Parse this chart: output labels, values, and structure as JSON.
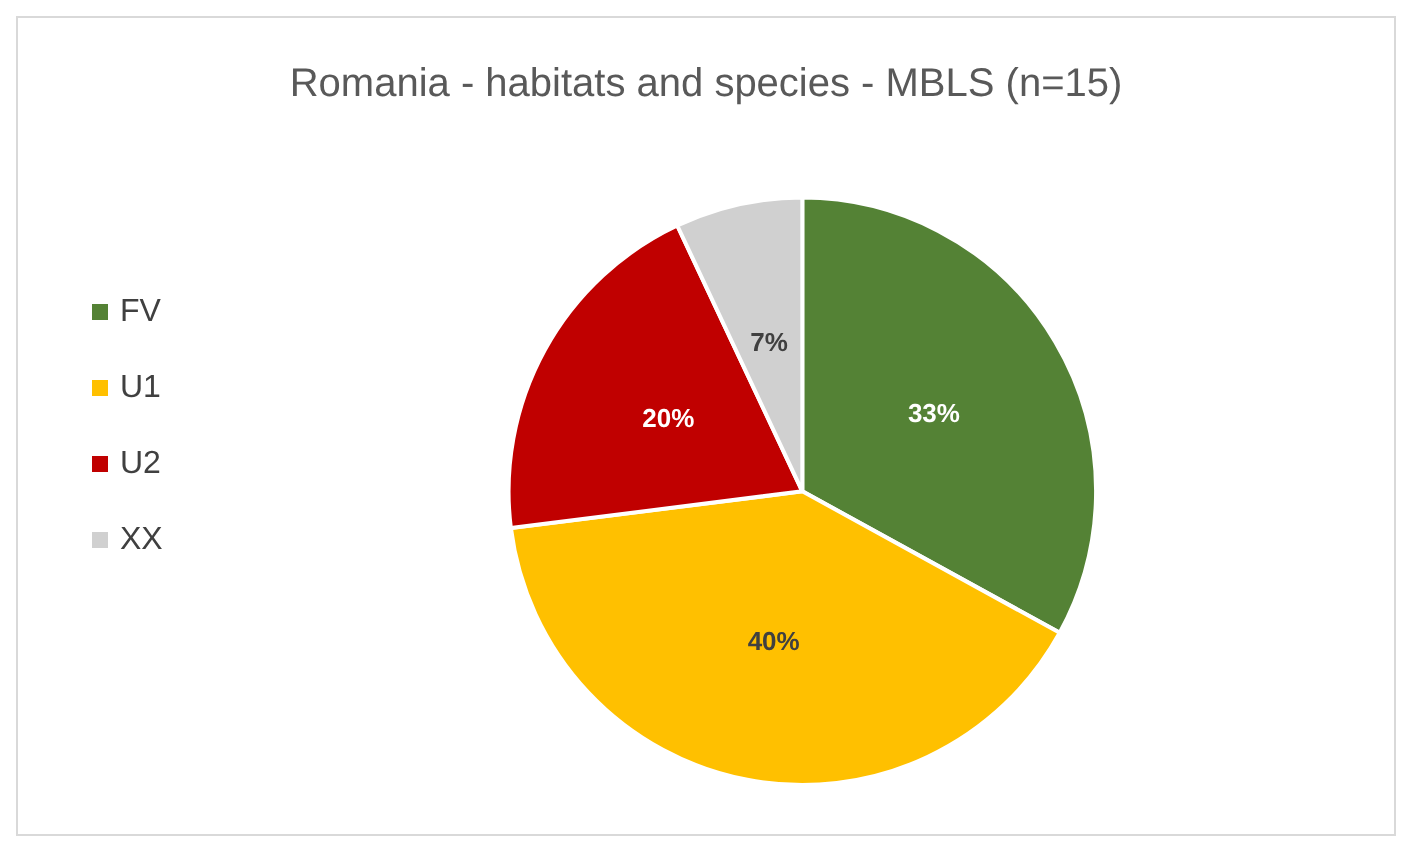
{
  "chart_data": {
    "type": "pie",
    "title": "Romania - habitats and species - MBLS (n=15)",
    "categories": [
      "FV",
      "U1",
      "U2",
      "XX"
    ],
    "values": [
      33,
      40,
      20,
      7
    ],
    "colors": [
      "#548235",
      "#ffc000",
      "#c00000",
      "#d0d0d0"
    ],
    "value_labels": [
      "33%",
      "40%",
      "20%",
      "7%"
    ],
    "legend": "left"
  }
}
